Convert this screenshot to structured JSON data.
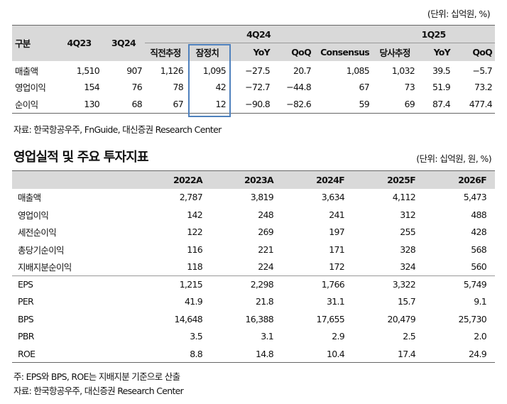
{
  "table1": {
    "unit": "(단위: 십억원, %)",
    "header_label": "구분",
    "periods": [
      "4Q23",
      "3Q24"
    ],
    "group_4q24": "4Q24",
    "group_1q25": "1Q25",
    "sub_4q24": [
      "직전추정",
      "잠정치",
      "YoY",
      "QoQ",
      "Consensus"
    ],
    "sub_1q25": [
      "당사추정",
      "YoY",
      "QoQ"
    ],
    "rows": [
      {
        "label": "매출액",
        "values": [
          "1,510",
          "907",
          "1,126",
          "1,095",
          "−27.5",
          "20.7",
          "1,085",
          "1,032",
          "39.5",
          "−5.7"
        ]
      },
      {
        "label": "영업이익",
        "values": [
          "154",
          "76",
          "78",
          "42",
          "−72.7",
          "−44.8",
          "67",
          "73",
          "51.9",
          "73.2"
        ]
      },
      {
        "label": "순이익",
        "values": [
          "130",
          "68",
          "67",
          "12",
          "−90.8",
          "−82.6",
          "59",
          "69",
          "87.4",
          "477.4"
        ]
      }
    ],
    "source": "자료: 한국항공우주, FnGuide, 대신증권 Research Center"
  },
  "section_title": "영업실적 및 주요 투자지표",
  "table2": {
    "unit": "(단위: 십억원, 원, %)",
    "years": [
      "2022A",
      "2023A",
      "2024F",
      "2025F",
      "2026F"
    ],
    "rows_group1": [
      {
        "label": "매출액",
        "values": [
          "2,787",
          "3,819",
          "3,634",
          "4,112",
          "5,473"
        ]
      },
      {
        "label": "영업이익",
        "values": [
          "142",
          "248",
          "241",
          "312",
          "488"
        ]
      },
      {
        "label": "세전순이익",
        "values": [
          "122",
          "269",
          "197",
          "255",
          "428"
        ]
      },
      {
        "label": "총당기순이익",
        "values": [
          "116",
          "221",
          "171",
          "328",
          "568"
        ]
      },
      {
        "label": "지배지분순이익",
        "values": [
          "118",
          "224",
          "172",
          "324",
          "560"
        ]
      }
    ],
    "rows_group2": [
      {
        "label": "EPS",
        "values": [
          "1,215",
          "2,298",
          "1,766",
          "3,322",
          "5,749"
        ]
      },
      {
        "label": "PER",
        "values": [
          "41.9",
          "21.8",
          "31.1",
          "15.7",
          "9.1"
        ]
      },
      {
        "label": "BPS",
        "values": [
          "14,648",
          "16,388",
          "17,655",
          "20,479",
          "25,730"
        ]
      },
      {
        "label": "PBR",
        "values": [
          "3.5",
          "3.1",
          "2.9",
          "2.5",
          "2.0"
        ]
      },
      {
        "label": "ROE",
        "values": [
          "8.8",
          "14.8",
          "10.4",
          "17.4",
          "24.9"
        ]
      }
    ],
    "note": "주: EPS와 BPS, ROE는 지배지분 기준으로 산출",
    "source": "자료: 한국항공우주, 대신증권 Research Center"
  },
  "colors": {
    "header_bg": "#d9d9d9",
    "highlight_border": "#4f81bd"
  }
}
